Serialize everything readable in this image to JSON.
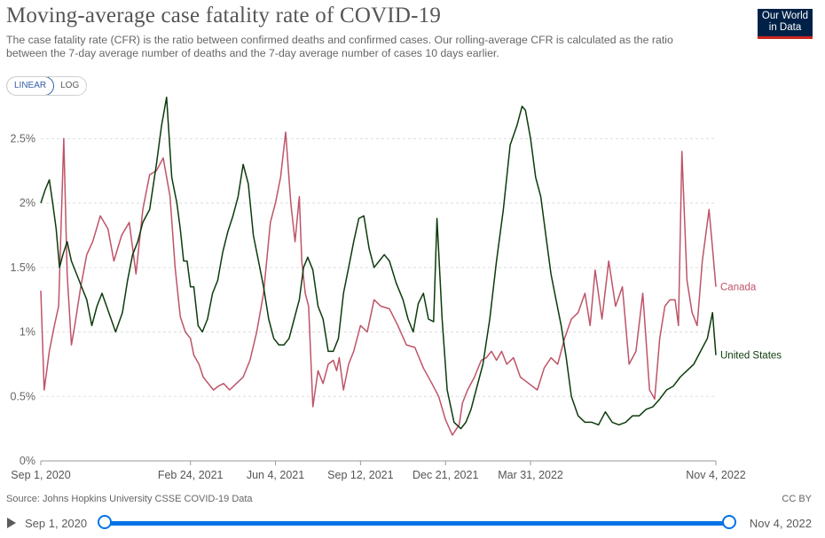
{
  "header": {
    "title": "Moving-average case fatality rate of COVID-19",
    "subtitle": "The case fatality rate (CFR) is the ratio between confirmed deaths and confirmed cases. Our rolling-average CFR is calculated as the ratio between the 7-day average number of deaths and the 7-day average number of cases 10 days earlier.",
    "logo_line1": "Our World",
    "logo_line2": "in Data"
  },
  "controls": {
    "linear_label": "LINEAR",
    "log_label": "LOG"
  },
  "footer": {
    "source": "Source: Johns Hopkins University CSSE COVID-19 Data",
    "license": "CC BY"
  },
  "timeline": {
    "start_label": "Sep 1, 2020",
    "end_label": "Nov 4, 2022"
  },
  "colors": {
    "canada": "#be5468",
    "us": "#0c3b0c",
    "grid": "#dddddd",
    "accent": "#0073e6"
  },
  "chart_data": {
    "type": "line",
    "title": "Moving-average case fatality rate of COVID-19",
    "xlabel": "",
    "ylabel": "",
    "ylim": [
      0,
      2.75
    ],
    "yticks": [
      0,
      0.5,
      1,
      1.5,
      2,
      2.5
    ],
    "ytick_labels": [
      "0%",
      "0.5%",
      "1%",
      "1.5%",
      "2%",
      "2.5%"
    ],
    "xlim": [
      0,
      794
    ],
    "xticks": [
      0,
      176,
      276,
      376,
      476,
      576,
      794
    ],
    "xtick_labels": [
      "Sep 1, 2020",
      "Feb 24, 2021",
      "Jun 4, 2021",
      "Sep 12, 2021",
      "Dec 21, 2021",
      "Mar 31, 2022",
      "Nov 4, 2022"
    ],
    "x_unit": "days since Sep 1, 2020",
    "series": [
      {
        "name": "Canada",
        "label": "Canada",
        "x": [
          0,
          4,
          10,
          16,
          21,
          27,
          31,
          36,
          40,
          47,
          54,
          61,
          70,
          79,
          86,
          95,
          104,
          112,
          120,
          128,
          136,
          144,
          152,
          158,
          164,
          170,
          176,
          180,
          186,
          191,
          197,
          203,
          209,
          215,
          222,
          230,
          238,
          246,
          254,
          262,
          270,
          276,
          282,
          288,
          294,
          299,
          304,
          307,
          311,
          315,
          320,
          326,
          332,
          338,
          344,
          348,
          351,
          356,
          362,
          368,
          376,
          384,
          392,
          400,
          410,
          420,
          430,
          440,
          450,
          460,
          468,
          476,
          484,
          492,
          496,
          502,
          510,
          518,
          524,
          530,
          536,
          542,
          548,
          556,
          564,
          574,
          584,
          592,
          600,
          608,
          616,
          624,
          632,
          640,
          646,
          652,
          660,
          668,
          676,
          684,
          692,
          700,
          708,
          716,
          722,
          728,
          734,
          740,
          746,
          750,
          754,
          760,
          766,
          772,
          778,
          782,
          786,
          790,
          794
        ],
        "values": [
          1.32,
          0.55,
          0.85,
          1.05,
          1.2,
          2.5,
          1.45,
          0.9,
          1.05,
          1.35,
          1.6,
          1.7,
          1.9,
          1.8,
          1.55,
          1.75,
          1.85,
          1.45,
          1.95,
          2.22,
          2.25,
          2.35,
          2.05,
          1.5,
          1.12,
          1.0,
          0.95,
          0.82,
          0.75,
          0.65,
          0.6,
          0.55,
          0.58,
          0.6,
          0.55,
          0.6,
          0.65,
          0.78,
          1.0,
          1.3,
          1.85,
          2.0,
          2.2,
          2.55,
          2.0,
          1.7,
          2.05,
          1.55,
          1.3,
          1.2,
          0.42,
          0.7,
          0.6,
          0.75,
          0.78,
          0.7,
          0.8,
          0.55,
          0.75,
          0.85,
          1.05,
          1.0,
          1.25,
          1.2,
          1.18,
          1.05,
          0.9,
          0.88,
          0.72,
          0.6,
          0.5,
          0.32,
          0.2,
          0.28,
          0.45,
          0.55,
          0.65,
          0.78,
          0.8,
          0.85,
          0.78,
          0.85,
          0.75,
          0.8,
          0.65,
          0.6,
          0.55,
          0.72,
          0.8,
          0.75,
          0.95,
          1.1,
          1.15,
          1.3,
          1.05,
          1.48,
          1.1,
          1.55,
          1.2,
          1.35,
          0.75,
          0.85,
          1.3,
          0.55,
          0.48,
          0.95,
          1.2,
          1.25,
          1.25,
          1.05,
          2.4,
          1.4,
          1.15,
          1.05,
          1.55,
          1.75,
          1.95,
          1.65,
          1.35
        ]
      },
      {
        "name": "United States",
        "label": "United States",
        "x": [
          0,
          5,
          10,
          14,
          18,
          22,
          26,
          31,
          36,
          42,
          48,
          54,
          60,
          66,
          72,
          80,
          88,
          96,
          102,
          108,
          114,
          120,
          128,
          136,
          142,
          148,
          154,
          160,
          164,
          168,
          172,
          176,
          180,
          185,
          190,
          196,
          202,
          208,
          214,
          220,
          226,
          232,
          238,
          244,
          250,
          256,
          262,
          268,
          274,
          280,
          286,
          292,
          298,
          304,
          309,
          314,
          320,
          326,
          332,
          338,
          344,
          350,
          356,
          362,
          368,
          374,
          380,
          386,
          392,
          398,
          404,
          410,
          418,
          426,
          432,
          438,
          444,
          450,
          456,
          462,
          466,
          472,
          478,
          486,
          494,
          500,
          506,
          512,
          520,
          528,
          536,
          544,
          552,
          560,
          566,
          570,
          576,
          582,
          588,
          594,
          600,
          606,
          612,
          618,
          624,
          632,
          640,
          648,
          656,
          664,
          672,
          680,
          688,
          696,
          704,
          712,
          720,
          728,
          736,
          744,
          752,
          760,
          768,
          776,
          784,
          790,
          794
        ],
        "values": [
          2.0,
          2.1,
          2.18,
          2.0,
          1.8,
          1.5,
          1.6,
          1.7,
          1.55,
          1.45,
          1.35,
          1.25,
          1.05,
          1.2,
          1.3,
          1.15,
          1.0,
          1.15,
          1.4,
          1.6,
          1.7,
          1.85,
          1.95,
          2.3,
          2.6,
          2.82,
          2.2,
          2.0,
          1.8,
          1.55,
          1.55,
          1.35,
          1.35,
          1.05,
          1.0,
          1.1,
          1.3,
          1.4,
          1.62,
          1.78,
          1.9,
          2.05,
          2.3,
          2.15,
          1.75,
          1.55,
          1.35,
          1.1,
          0.95,
          0.9,
          0.9,
          0.95,
          1.1,
          1.25,
          1.5,
          1.58,
          1.48,
          1.2,
          1.1,
          0.85,
          0.85,
          0.95,
          1.3,
          1.5,
          1.7,
          1.88,
          1.9,
          1.65,
          1.5,
          1.55,
          1.6,
          1.55,
          1.38,
          1.25,
          1.1,
          1.0,
          1.22,
          1.3,
          1.1,
          1.08,
          1.88,
          1.1,
          0.55,
          0.3,
          0.25,
          0.3,
          0.4,
          0.55,
          0.75,
          1.1,
          1.55,
          1.95,
          2.45,
          2.6,
          2.75,
          2.72,
          2.5,
          2.2,
          2.05,
          1.75,
          1.45,
          1.25,
          1.05,
          0.8,
          0.5,
          0.35,
          0.3,
          0.3,
          0.28,
          0.38,
          0.3,
          0.28,
          0.3,
          0.35,
          0.35,
          0.4,
          0.42,
          0.48,
          0.55,
          0.58,
          0.65,
          0.7,
          0.75,
          0.85,
          0.95,
          1.15,
          0.82
        ]
      }
    ]
  }
}
